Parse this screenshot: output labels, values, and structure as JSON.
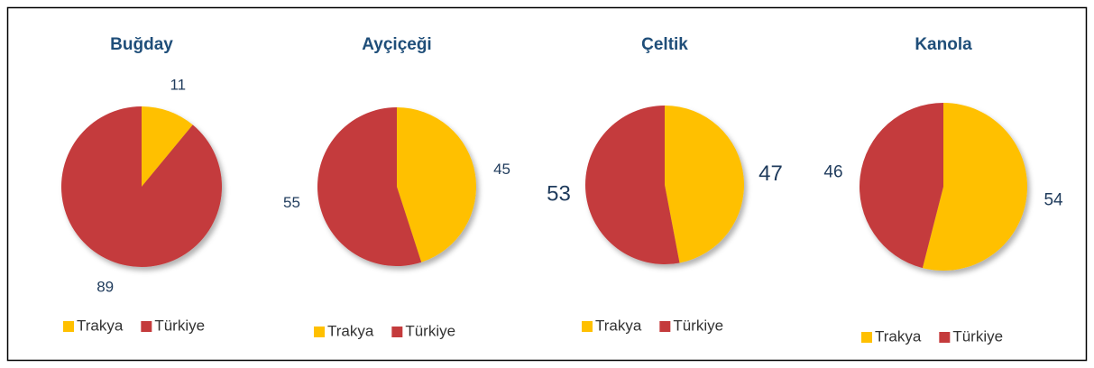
{
  "chart_data": [
    {
      "type": "pie",
      "title": "Buğday",
      "categories": [
        "Trakya",
        "Türkiye"
      ],
      "values": [
        11,
        89
      ],
      "colors": [
        "#ffc000",
        "#c43b3c"
      ]
    },
    {
      "type": "pie",
      "title": "Ayçiçeği",
      "categories": [
        "Trakya",
        "Türkiye"
      ],
      "values": [
        45,
        55
      ],
      "colors": [
        "#ffc000",
        "#c43b3c"
      ]
    },
    {
      "type": "pie",
      "title": "Çeltik",
      "categories": [
        "Trakya",
        "Türkiye"
      ],
      "values": [
        47,
        53
      ],
      "colors": [
        "#ffc000",
        "#c43b3c"
      ]
    },
    {
      "type": "pie",
      "title": "Kanola",
      "categories": [
        "Trakya",
        "Türkiye"
      ],
      "values": [
        54,
        46
      ],
      "colors": [
        "#ffc000",
        "#c43b3c"
      ]
    }
  ]
}
